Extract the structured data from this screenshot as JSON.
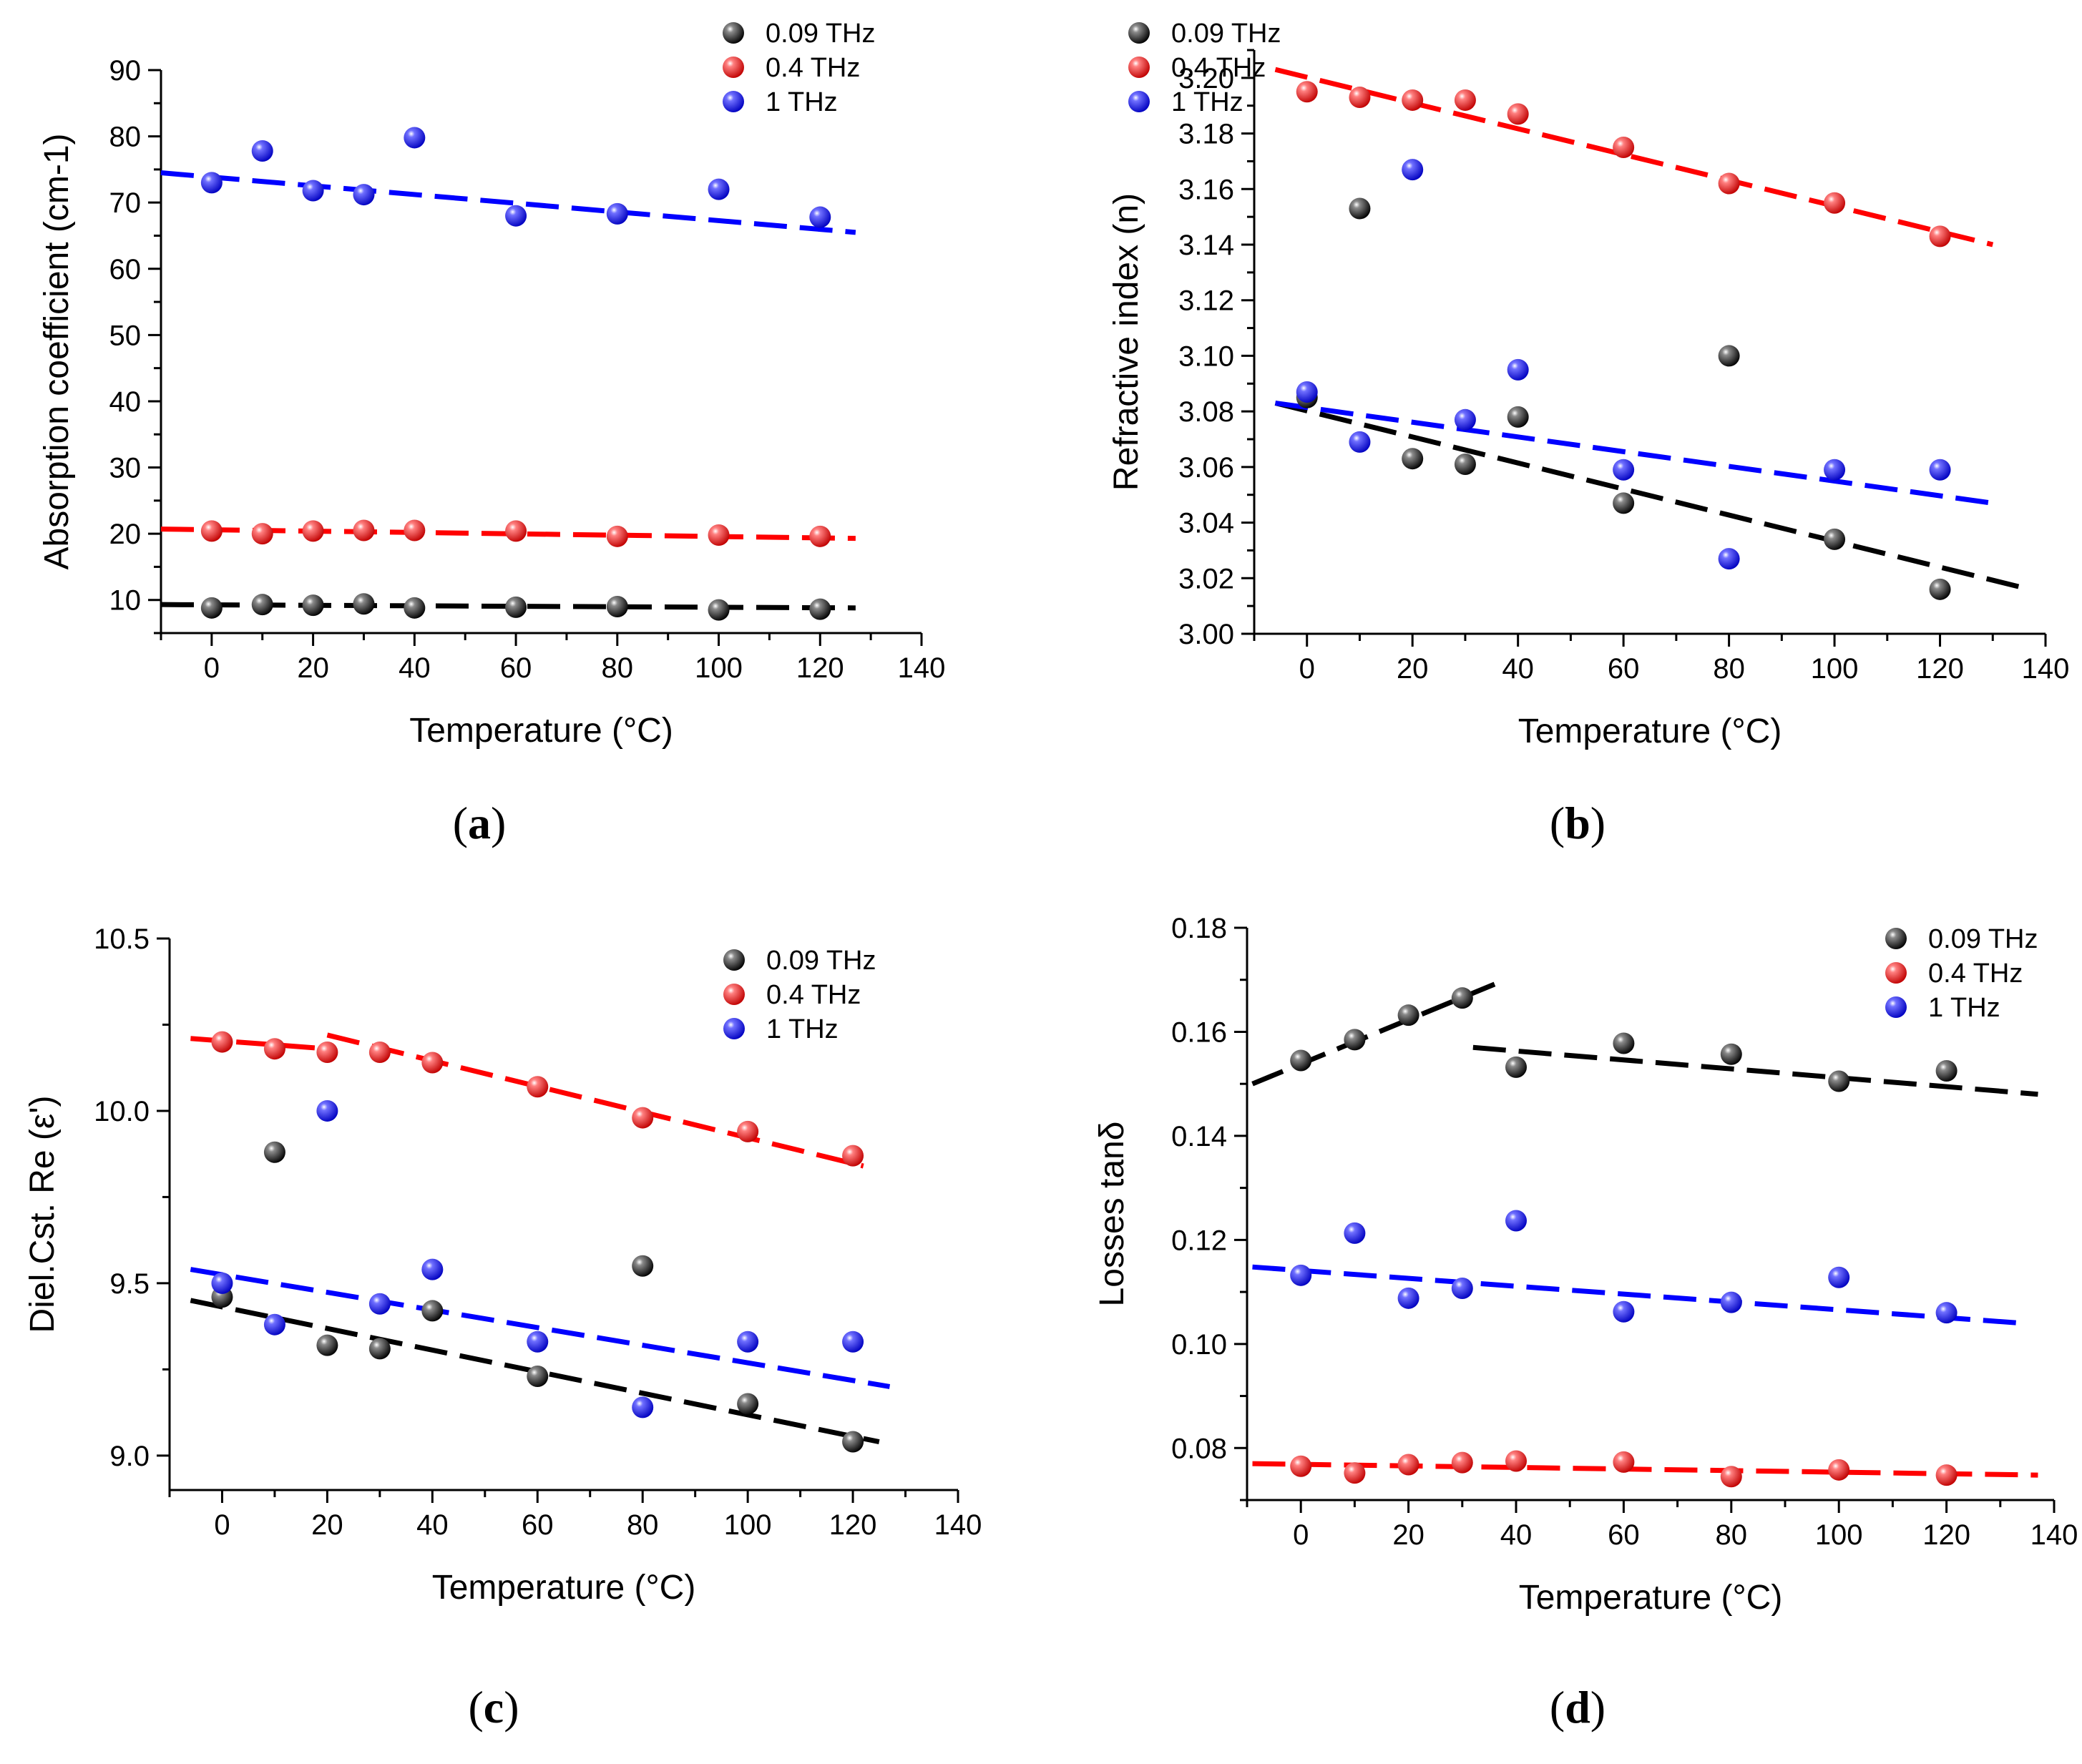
{
  "chart_data": [
    {
      "panel": "(a)",
      "panel_letter": "a",
      "type": "scatter",
      "xlabel": "Temperature (°C)",
      "ylabel": "Absorption coefficient (cm-1)",
      "xlim": [
        -10,
        140
      ],
      "ylim": [
        5,
        90
      ],
      "xticks": [
        0,
        20,
        40,
        60,
        80,
        100,
        120,
        140
      ],
      "yticks": [
        10,
        20,
        30,
        40,
        50,
        60,
        70,
        80,
        90
      ],
      "yticks_format": 0,
      "legend_position": "top-right",
      "series": [
        {
          "name": "0.09 THz",
          "color": "#000000",
          "x": [
            0,
            10,
            20,
            30,
            40,
            60,
            80,
            100,
            120
          ],
          "y": [
            8.8,
            9.3,
            9.2,
            9.4,
            8.8,
            8.9,
            9.0,
            8.5,
            8.6
          ],
          "fits": [
            {
              "x": [
                -10,
                127
              ],
              "y": [
                9.3,
                8.8
              ]
            }
          ]
        },
        {
          "name": "0.4 THz",
          "color": "#ff0000",
          "x": [
            0,
            10,
            20,
            30,
            40,
            60,
            80,
            100,
            120
          ],
          "y": [
            20.4,
            20.0,
            20.4,
            20.5,
            20.5,
            20.4,
            19.6,
            19.8,
            19.6
          ],
          "fits": [
            {
              "x": [
                -10,
                127
              ],
              "y": [
                20.7,
                19.3
              ]
            }
          ]
        },
        {
          "name": "1 THz",
          "color": "#0000ff",
          "x": [
            0,
            10,
            20,
            30,
            40,
            60,
            80,
            100,
            120
          ],
          "y": [
            73.0,
            77.8,
            71.8,
            71.2,
            79.8,
            68.0,
            68.3,
            72.0,
            67.8
          ],
          "fits": [
            {
              "x": [
                -10,
                127
              ],
              "y": [
                74.5,
                65.5
              ]
            }
          ]
        }
      ]
    },
    {
      "panel": "(b)",
      "panel_letter": "b",
      "type": "scatter",
      "xlabel": "Temperature (°C)",
      "ylabel": "Refractive index (n)",
      "xlim": [
        -10,
        140
      ],
      "ylim": [
        3.0,
        3.21
      ],
      "xticks": [
        0,
        20,
        40,
        60,
        80,
        100,
        120,
        140
      ],
      "yticks": [
        3.0,
        3.02,
        3.04,
        3.06,
        3.08,
        3.1,
        3.12,
        3.14,
        3.16,
        3.18,
        3.2
      ],
      "yticks_format": 2,
      "legend_position": "top-right",
      "series": [
        {
          "name": "0.09 THz",
          "color": "#000000",
          "x": [
            0,
            10,
            20,
            30,
            40,
            60,
            80,
            100,
            120
          ],
          "y": [
            3.085,
            3.153,
            3.063,
            3.061,
            3.078,
            3.047,
            3.1,
            3.034,
            3.016
          ],
          "fits": [
            {
              "x": [
                -6,
                137
              ],
              "y": [
                3.083,
                3.016
              ]
            }
          ]
        },
        {
          "name": "0.4 THz",
          "color": "#ff0000",
          "x": [
            0,
            10,
            20,
            30,
            40,
            60,
            80,
            100,
            120
          ],
          "y": [
            3.195,
            3.193,
            3.192,
            3.192,
            3.187,
            3.175,
            3.162,
            3.155,
            3.143
          ],
          "fits": [
            {
              "x": [
                -6,
                130
              ],
              "y": [
                3.203,
                3.14
              ]
            }
          ]
        },
        {
          "name": "1 THz",
          "color": "#0000ff",
          "x": [
            0,
            10,
            20,
            30,
            40,
            60,
            80,
            100,
            120
          ],
          "y": [
            3.087,
            3.069,
            3.167,
            3.077,
            3.095,
            3.059,
            3.027,
            3.059,
            3.059
          ],
          "fits": [
            {
              "x": [
                -6,
                130
              ],
              "y": [
                3.083,
                3.047
              ]
            }
          ]
        }
      ]
    },
    {
      "panel": "(c)",
      "panel_letter": "c",
      "type": "scatter",
      "xlabel": "Temperature (°C)",
      "ylabel": "Diel.Cst. Re (ε')",
      "xlim": [
        -10,
        140
      ],
      "ylim": [
        8.9,
        10.5
      ],
      "xticks": [
        0,
        20,
        40,
        60,
        80,
        100,
        120,
        140
      ],
      "yticks": [
        9.0,
        9.5,
        10.0,
        10.5
      ],
      "yticks_format": 1,
      "legend_position": "top-right",
      "series": [
        {
          "name": "0.09 THz",
          "color": "#000000",
          "x": [
            0,
            10,
            20,
            30,
            40,
            60,
            80,
            100,
            120
          ],
          "y": [
            9.46,
            9.88,
            9.32,
            9.31,
            9.42,
            9.23,
            9.55,
            9.15,
            9.04
          ],
          "fits": [
            {
              "x": [
                -6,
                125
              ],
              "y": [
                9.45,
                9.04
              ]
            }
          ]
        },
        {
          "name": "0.4 THz",
          "color": "#ff0000",
          "x": [
            0,
            10,
            20,
            30,
            40,
            60,
            80,
            100,
            120
          ],
          "y": [
            10.2,
            10.18,
            10.17,
            10.17,
            10.14,
            10.07,
            9.98,
            9.94,
            9.87
          ],
          "fits": [
            {
              "x": [
                -6,
                20
              ],
              "y": [
                10.21,
                10.18
              ]
            },
            {
              "x": [
                20,
                122
              ],
              "y": [
                10.22,
                9.84
              ]
            }
          ]
        },
        {
          "name": "1 THz",
          "color": "#0000ff",
          "x": [
            0,
            10,
            20,
            30,
            40,
            60,
            80,
            100,
            120
          ],
          "y": [
            9.5,
            9.38,
            10.0,
            9.44,
            9.54,
            9.33,
            9.14,
            9.33,
            9.33
          ],
          "fits": [
            {
              "x": [
                -6,
                127
              ],
              "y": [
                9.54,
                9.2
              ]
            }
          ]
        }
      ]
    },
    {
      "panel": "(d)",
      "panel_letter": "d",
      "type": "scatter",
      "xlabel": "Temperature (°C)",
      "ylabel": "Losses tanδ",
      "xlim": [
        -10,
        140
      ],
      "ylim": [
        0.07,
        0.18
      ],
      "xticks": [
        0,
        20,
        40,
        60,
        80,
        100,
        120,
        140
      ],
      "yticks": [
        0.08,
        0.1,
        0.12,
        0.14,
        0.16,
        0.18
      ],
      "yticks_format": 2,
      "legend_position": "top-right",
      "series": [
        {
          "name": "0.09 THz",
          "color": "#000000",
          "x": [
            0,
            10,
            20,
            30,
            40,
            60,
            80,
            100,
            120
          ],
          "y": [
            0.1545,
            0.1585,
            0.1632,
            0.1665,
            0.1532,
            0.1578,
            0.1557,
            0.1505,
            0.1525
          ],
          "fits": [
            {
              "x": [
                -9,
                38
              ],
              "y": [
                0.15,
                0.17
              ]
            },
            {
              "x": [
                32,
                137
              ],
              "y": [
                0.157,
                0.148
              ]
            }
          ]
        },
        {
          "name": "0.4 THz",
          "color": "#ff0000",
          "x": [
            0,
            10,
            20,
            30,
            40,
            60,
            80,
            100,
            120
          ],
          "y": [
            0.0765,
            0.0752,
            0.0768,
            0.0772,
            0.0775,
            0.0773,
            0.0745,
            0.0758,
            0.0748
          ],
          "fits": [
            {
              "x": [
                -9,
                137
              ],
              "y": [
                0.077,
                0.0748
              ]
            }
          ]
        },
        {
          "name": "1 THz",
          "color": "#0000ff",
          "x": [
            0,
            10,
            20,
            30,
            40,
            60,
            80,
            100,
            120
          ],
          "y": [
            0.1132,
            0.1213,
            0.1088,
            0.1107,
            0.1237,
            0.1062,
            0.108,
            0.1128,
            0.106
          ],
          "fits": [
            {
              "x": [
                -9,
                134
              ],
              "y": [
                0.1148,
                0.104
              ]
            }
          ]
        }
      ]
    }
  ]
}
